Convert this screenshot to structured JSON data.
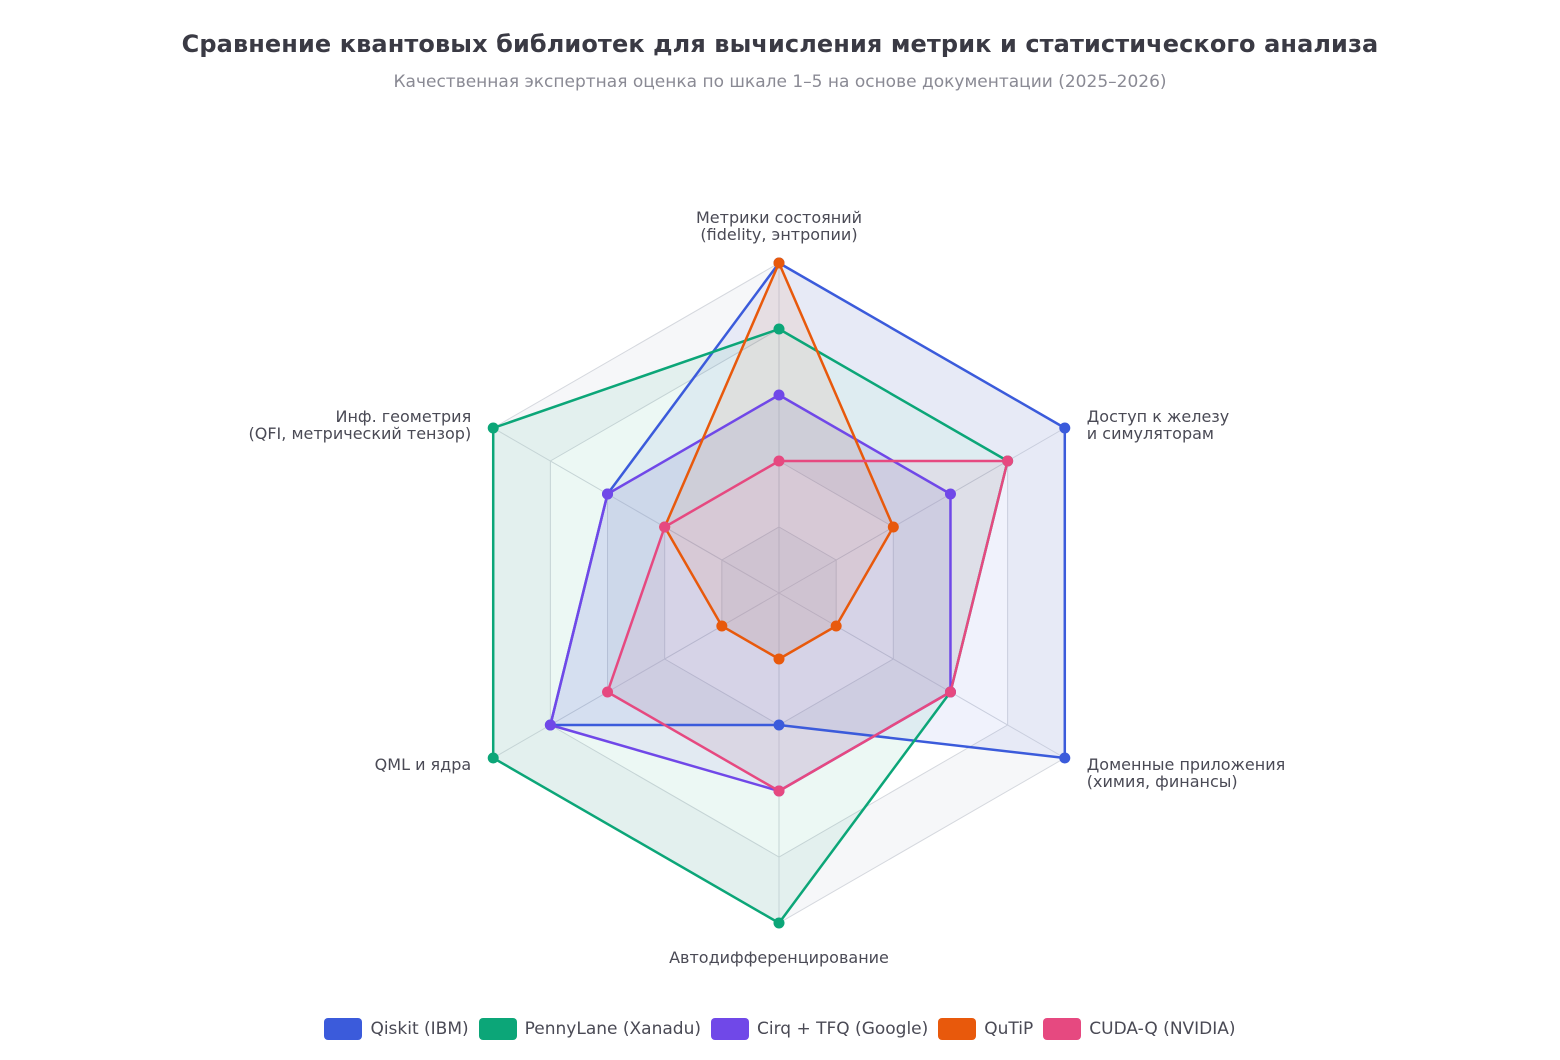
{
  "title": "Сравнение квантовых библиотек для вычисления метрик и статистического анализа",
  "subtitle": "Качественная экспертная оценка по шкале 1–5 на основе документации (2025–2026)",
  "chart_data": {
    "type": "radar",
    "title": "Сравнение квантовых библиотек для вычисления метрик и статистического анализа",
    "subtitle": "Качественная экспертная оценка по шкале 1–5 на основе документации (2025–2026)",
    "axes": [
      [
        "Метрики состояний",
        "(fidelity, энтропии)"
      ],
      [
        "Доступ к железу",
        "и симуляторам"
      ],
      [
        "Доменные приложения",
        "(химия, финансы)"
      ],
      [
        "Автодифференцирование"
      ],
      [
        "QML и ядра"
      ],
      [
        "Инф. геометрия",
        "(QFI, метрический тензор)"
      ]
    ],
    "range": [
      0,
      5
    ],
    "grid": true,
    "legend_position": "bottom",
    "series": [
      {
        "name": "Qiskit (IBM)",
        "color": "#3b5bdb",
        "values": [
          5,
          5,
          5,
          2,
          4,
          3
        ]
      },
      {
        "name": "PennyLane (Xanadu)",
        "color": "#0ca678",
        "values": [
          4,
          4,
          3,
          5,
          5,
          5
        ]
      },
      {
        "name": "Cirq + TFQ (Google)",
        "color": "#7048e8",
        "values": [
          3,
          3,
          3,
          3,
          4,
          3
        ]
      },
      {
        "name": "QuTiP",
        "color": "#e8590c",
        "values": [
          5,
          2,
          1,
          1,
          1,
          2
        ]
      },
      {
        "name": "CUDA-Q (NVIDIA)",
        "color": "#e64980",
        "values": [
          2,
          4,
          3,
          3,
          3,
          2
        ]
      }
    ]
  }
}
